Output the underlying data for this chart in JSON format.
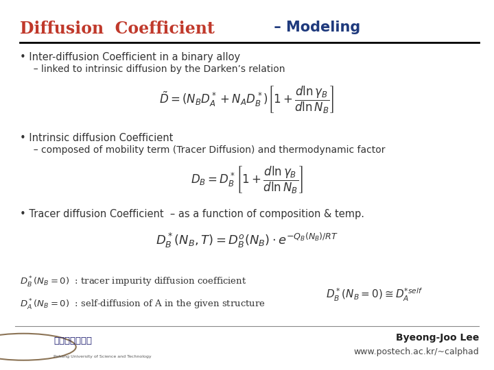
{
  "title_part1": "Diffusion  Coefficient",
  "title_part2": " – Modeling",
  "title_color1": "#C0392B",
  "title_color2": "#1F3A7D",
  "bg_color": "#FFFFFF",
  "line_color": "#000000",
  "text_color": "#333333",
  "bullet1_head": "• Inter-diffusion Coefficient in a binary alloy",
  "bullet1_sub": "  – linked to intrinsic diffusion by the Darken’s relation",
  "eq1": "$\\tilde{D} = (N_B D_A^* + N_A D_B^*)\\left[1 + \\dfrac{d\\ln\\gamma_B}{d\\ln N_B}\\right]$",
  "bullet2_head": "• Intrinsic diffusion Coefficient",
  "bullet2_sub": "  – composed of mobility term (Tracer Diffusion) and thermodynamic factor",
  "eq2": "$D_B = D_B^*\\left[1 + \\dfrac{d\\ln\\gamma_B}{d\\ln N_B}\\right]$",
  "bullet3_head": "• Tracer diffusion Coefficient  – as a function of composition & temp.",
  "eq3": "$D_B^*(N_B, T) = D_B^o(N_B) \\cdot e^{-Q_B(N_B)/RT}$",
  "annot1": "$D_B^*(N_B = 0)$  : tracer impurity diffusion coefficient",
  "annot2": "$D_A^*(N_B = 0)$  : self-diffusion of A in the given structure",
  "annot3": "$D_B^*(N_B = 0) \\cong D_A^{*self}$",
  "footer_name": "Byeong-Joo Lee",
  "footer_url": "www.postech.ac.kr/~calphad"
}
